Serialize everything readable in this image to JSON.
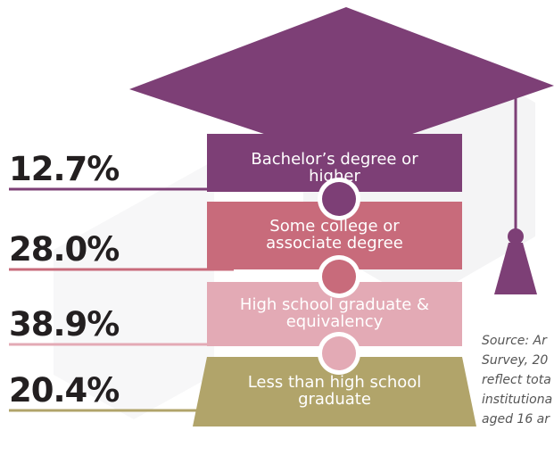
{
  "chart_data": {
    "type": "puzzle",
    "categories": [
      "Bachelor’s degree or higher",
      "Some college or associate degree",
      "High school graduate & equivalency",
      "Less than high school graduate"
    ],
    "values": [
      12.7,
      28.0,
      38.9,
      20.4
    ],
    "value_labels": [
      "12.7%",
      "28.0%",
      "38.9%",
      "20.4%"
    ],
    "colors": [
      "#7d3f76",
      "#c86b7b",
      "#e3aab5",
      "#b1a46a"
    ],
    "cap_color": "#7d3f76",
    "annotation": [
      "Source: Ar",
      "Survey, 20",
      "reflect tota",
      "institutiona",
      "aged 16 ar"
    ]
  }
}
